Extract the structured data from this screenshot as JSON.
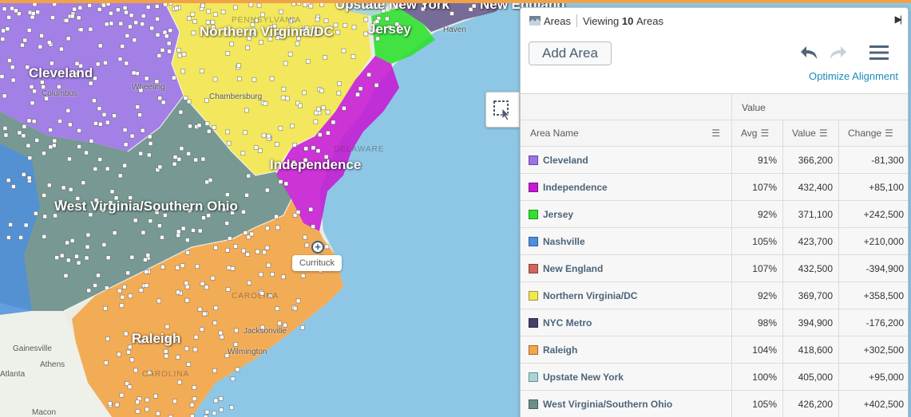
{
  "map": {
    "region_labels": [
      {
        "name": "Cleveland"
      },
      {
        "name": "Northern Virginia/DC"
      },
      {
        "name": "Jersey"
      },
      {
        "name": "Independence"
      },
      {
        "name": "West Virginia/Southern Ohio"
      },
      {
        "name": "Raleigh"
      },
      {
        "name": "Upstate New York"
      },
      {
        "name": "New England"
      }
    ],
    "state_labels": [
      "PENNSYLVANIA",
      "DELAWARE",
      "CAROLINA",
      "CAROLINA"
    ],
    "city_labels": [
      "Columbus",
      "Wheeling",
      "Chambersburg",
      "Haven",
      "Jacksonville",
      "Wilmington",
      "Gainesville",
      "Athens",
      "Atlanta",
      "Macon"
    ],
    "marker_tooltip": "Currituck",
    "colors": {
      "cleveland": "#9b73e6",
      "independence": "#c71ad4",
      "jersey": "#2fe02f",
      "nashville": "#4e8fde",
      "new_england": "#d0645a",
      "northern_virginia_dc": "#f2e651",
      "nyc_metro": "#493e6b",
      "raleigh": "#f3a64a",
      "upstate_new_york": "#a8d6d8",
      "west_virginia_southern_ohio": "#6b8f8a",
      "water": "#8ec7e6"
    }
  },
  "tools": {
    "select_icon": "selection-pointer-icon"
  },
  "panel": {
    "header_icon": "areas-icon",
    "title": "Areas",
    "viewing_prefix": "Viewing",
    "viewing_count": "10",
    "viewing_suffix": "Areas",
    "add_area_label": "Add Area",
    "optimize_label": "Optimize Alignment",
    "table": {
      "group_label": "Value",
      "columns": {
        "name": "Area Name",
        "avg": "Avg",
        "value": "Value",
        "change": "Change"
      },
      "rows": [
        {
          "name": "Cleveland",
          "color": "#9b73e6",
          "avg": "91%",
          "value": "366,200",
          "change": "-81,300",
          "positive": false
        },
        {
          "name": "Independence",
          "color": "#c71ad4",
          "avg": "107%",
          "value": "432,400",
          "change": "+85,100",
          "positive": true
        },
        {
          "name": "Jersey",
          "color": "#2fe02f",
          "avg": "92%",
          "value": "371,100",
          "change": "+242,500",
          "positive": true
        },
        {
          "name": "Nashville",
          "color": "#4e8fde",
          "avg": "105%",
          "value": "423,700",
          "change": "+210,000",
          "positive": true
        },
        {
          "name": "New England",
          "color": "#d0645a",
          "avg": "107%",
          "value": "432,500",
          "change": "-394,900",
          "positive": false
        },
        {
          "name": "Northern Virginia/DC",
          "color": "#f2e651",
          "avg": "92%",
          "value": "369,700",
          "change": "+358,500",
          "positive": true
        },
        {
          "name": "NYC Metro",
          "color": "#493e6b",
          "avg": "98%",
          "value": "394,900",
          "change": "-176,200",
          "positive": false
        },
        {
          "name": "Raleigh",
          "color": "#f3a64a",
          "avg": "104%",
          "value": "418,600",
          "change": "+302,500",
          "positive": true
        },
        {
          "name": "Upstate New York",
          "color": "#a8d6d8",
          "avg": "100%",
          "value": "405,000",
          "change": "+95,000",
          "positive": true
        },
        {
          "name": "West Virginia/Southern Ohio",
          "color": "#6b8f8a",
          "avg": "105%",
          "value": "426,200",
          "change": "+402,500",
          "positive": true
        }
      ]
    }
  }
}
